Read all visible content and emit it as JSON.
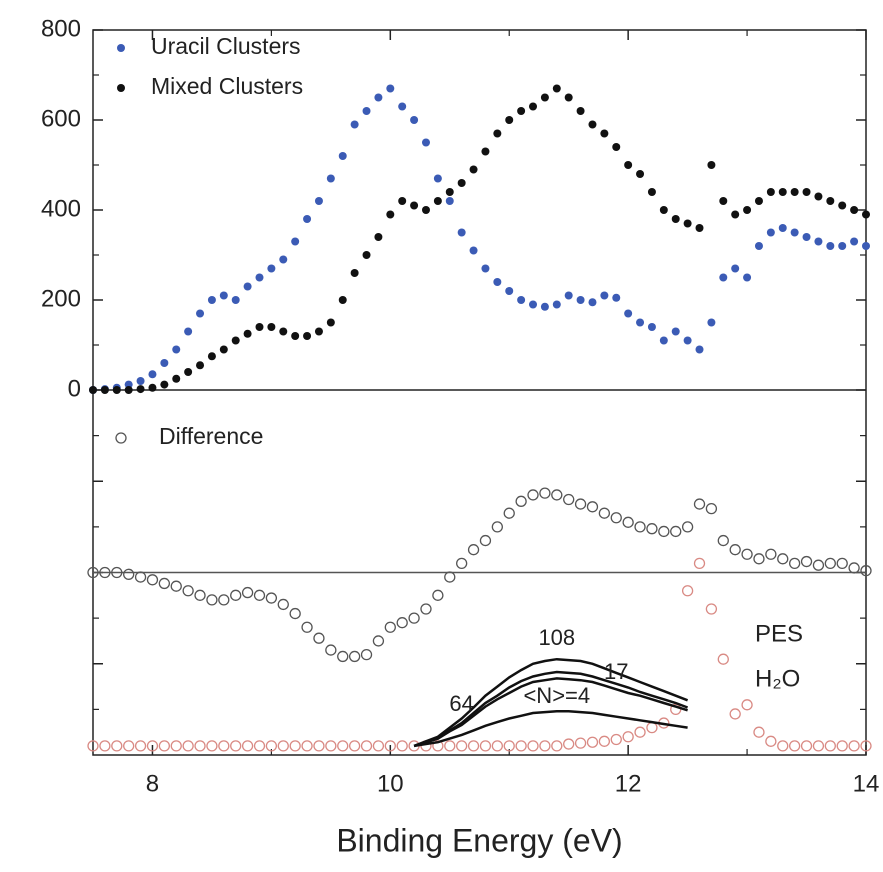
{
  "chart_data": [
    {
      "type": "scatter",
      "x": [
        7.5,
        7.6,
        7.7,
        7.8,
        7.9,
        8.0,
        8.1,
        8.2,
        8.3,
        8.4,
        8.5,
        8.6,
        8.7,
        8.8,
        8.9,
        9.0,
        9.1,
        9.2,
        9.3,
        9.4,
        9.5,
        9.6,
        9.7,
        9.8,
        9.9,
        10.0,
        10.1,
        10.2,
        10.3,
        10.4,
        10.5,
        10.6,
        10.7,
        10.8,
        10.9,
        11.0,
        11.1,
        11.2,
        11.3,
        11.4,
        11.5,
        11.6,
        11.7,
        11.8,
        11.9,
        12.0,
        12.1,
        12.2,
        12.3,
        12.4,
        12.5,
        12.6,
        12.7,
        12.8,
        12.9,
        13.0,
        13.1,
        13.2,
        13.3,
        13.4,
        13.5,
        13.6,
        13.7,
        13.8,
        13.9,
        14.0
      ],
      "xlim": [
        7.5,
        14
      ],
      "xticks": [
        8,
        10,
        12,
        14
      ],
      "ylim": [
        0,
        800
      ],
      "yticks": [
        0,
        200,
        400,
        600,
        800
      ],
      "legend": "upper left",
      "series": [
        {
          "name": "Uracil Clusters",
          "color": "#3b5bb5",
          "marker": "filled",
          "values": [
            0,
            2,
            5,
            12,
            20,
            35,
            60,
            90,
            130,
            170,
            200,
            210,
            200,
            230,
            250,
            270,
            290,
            330,
            380,
            420,
            470,
            520,
            590,
            620,
            650,
            670,
            630,
            600,
            550,
            470,
            420,
            350,
            310,
            270,
            240,
            220,
            200,
            190,
            185,
            190,
            210,
            200,
            195,
            210,
            205,
            170,
            150,
            140,
            110,
            130,
            110,
            90,
            150,
            250,
            270,
            250,
            320,
            350,
            360,
            350,
            340,
            330,
            320,
            320,
            330,
            320
          ]
        },
        {
          "name": "Mixed Clusters",
          "color": "#111111",
          "marker": "filled",
          "values": [
            0,
            0,
            0,
            0,
            2,
            5,
            12,
            25,
            40,
            55,
            75,
            90,
            110,
            125,
            140,
            140,
            130,
            120,
            120,
            130,
            150,
            200,
            260,
            300,
            340,
            390,
            420,
            410,
            400,
            420,
            440,
            460,
            490,
            530,
            570,
            600,
            620,
            630,
            650,
            670,
            650,
            620,
            590,
            570,
            540,
            500,
            480,
            440,
            400,
            380,
            370,
            360,
            500,
            420,
            390,
            400,
            420,
            440,
            440,
            440,
            440,
            430,
            420,
            410,
            400,
            390
          ]
        }
      ]
    },
    {
      "type": "scatter",
      "x": [
        7.5,
        7.6,
        7.7,
        7.8,
        7.9,
        8.0,
        8.1,
        8.2,
        8.3,
        8.4,
        8.5,
        8.6,
        8.7,
        8.8,
        8.9,
        9.0,
        9.1,
        9.2,
        9.3,
        9.4,
        9.5,
        9.6,
        9.7,
        9.8,
        9.9,
        10.0,
        10.1,
        10.2,
        10.3,
        10.4,
        10.5,
        10.6,
        10.7,
        10.8,
        10.9,
        11.0,
        11.1,
        11.2,
        11.3,
        11.4,
        11.5,
        11.6,
        11.7,
        11.8,
        11.9,
        12.0,
        12.1,
        12.2,
        12.3,
        12.4,
        12.5,
        12.6,
        12.7,
        12.8,
        12.9,
        13.0,
        13.1,
        13.2,
        13.3,
        13.4,
        13.5,
        13.6,
        13.7,
        13.8,
        13.9,
        14.0
      ],
      "xlim": [
        7.5,
        14
      ],
      "xticks": [
        8,
        10,
        12,
        14
      ],
      "xlabel": "Binding Energy (eV)",
      "ylim": [
        -2,
        2
      ],
      "yticks": [
        -1,
        0,
        1
      ],
      "legend": "upper left",
      "annotations": [
        "PES",
        "H₂O"
      ],
      "series": [
        {
          "name": "Difference",
          "color": "#555555",
          "marker": "open",
          "values": [
            0,
            0,
            0,
            -0.02,
            -0.05,
            -0.08,
            -0.12,
            -0.15,
            -0.2,
            -0.25,
            -0.3,
            -0.3,
            -0.25,
            -0.22,
            -0.25,
            -0.28,
            -0.35,
            -0.45,
            -0.6,
            -0.72,
            -0.85,
            -0.92,
            -0.92,
            -0.9,
            -0.75,
            -0.6,
            -0.55,
            -0.5,
            -0.4,
            -0.25,
            -0.05,
            0.1,
            0.25,
            0.35,
            0.5,
            0.65,
            0.78,
            0.85,
            0.87,
            0.85,
            0.8,
            0.75,
            0.72,
            0.65,
            0.6,
            0.55,
            0.5,
            0.48,
            0.45,
            0.45,
            0.5,
            0.75,
            0.7,
            0.35,
            0.25,
            0.2,
            0.15,
            0.2,
            0.15,
            0.1,
            0.12,
            0.08,
            0.1,
            0.1,
            0.05,
            0.02
          ]
        },
        {
          "color": "#d98a84",
          "marker": "open",
          "values": [
            -1.9,
            -1.9,
            -1.9,
            -1.9,
            -1.9,
            -1.9,
            -1.9,
            -1.9,
            -1.9,
            -1.9,
            -1.9,
            -1.9,
            -1.9,
            -1.9,
            -1.9,
            -1.9,
            -1.9,
            -1.9,
            -1.9,
            -1.9,
            -1.9,
            -1.9,
            -1.9,
            -1.9,
            -1.9,
            -1.9,
            -1.9,
            -1.9,
            -1.9,
            -1.9,
            -1.9,
            -1.9,
            -1.9,
            -1.9,
            -1.9,
            -1.9,
            -1.9,
            -1.9,
            -1.9,
            -1.9,
            -1.88,
            -1.87,
            -1.86,
            -1.85,
            -1.83,
            -1.8,
            -1.75,
            -1.7,
            -1.65,
            -1.5,
            -0.2,
            0.1,
            -0.4,
            -0.95,
            -1.55,
            -1.45,
            -1.75,
            -1.85,
            -1.9,
            -1.9,
            -1.9,
            -1.9,
            -1.9,
            -1.9,
            -1.9,
            -1.9
          ]
        },
        {
          "name": "108",
          "color": "#111111",
          "marker": "line",
          "values": [
            null,
            null,
            null,
            null,
            null,
            null,
            null,
            null,
            null,
            null,
            null,
            null,
            null,
            null,
            null,
            null,
            null,
            null,
            null,
            null,
            null,
            null,
            null,
            null,
            null,
            null,
            null,
            -1.9,
            -1.85,
            -1.8,
            -1.7,
            -1.6,
            -1.48,
            -1.35,
            -1.25,
            -1.15,
            -1.07,
            -1.0,
            -0.97,
            -0.95,
            -0.96,
            -0.97,
            -1.0,
            -1.05,
            -1.1,
            -1.15,
            -1.2,
            -1.25,
            -1.3,
            -1.35,
            -1.4,
            null,
            null,
            null,
            null,
            null,
            null,
            null,
            null,
            null,
            null,
            null,
            null,
            null,
            null,
            null
          ]
        },
        {
          "name": "64",
          "color": "#111111",
          "marker": "line",
          "values": [
            null,
            null,
            null,
            null,
            null,
            null,
            null,
            null,
            null,
            null,
            null,
            null,
            null,
            null,
            null,
            null,
            null,
            null,
            null,
            null,
            null,
            null,
            null,
            null,
            null,
            null,
            null,
            -1.9,
            -1.86,
            -1.82,
            -1.73,
            -1.65,
            -1.54,
            -1.43,
            -1.35,
            -1.26,
            -1.19,
            -1.14,
            -1.11,
            -1.09,
            -1.1,
            -1.11,
            -1.14,
            -1.18,
            -1.22,
            -1.26,
            -1.31,
            -1.35,
            -1.39,
            -1.43,
            -1.48,
            null,
            null,
            null,
            null,
            null,
            null,
            null,
            null,
            null,
            null,
            null,
            null,
            null,
            null,
            null
          ]
        },
        {
          "name": "17",
          "color": "#111111",
          "marker": "line",
          "values": [
            null,
            null,
            null,
            null,
            null,
            null,
            null,
            null,
            null,
            null,
            null,
            null,
            null,
            null,
            null,
            null,
            null,
            null,
            null,
            null,
            null,
            null,
            null,
            null,
            null,
            null,
            null,
            -1.9,
            -1.86,
            -1.82,
            -1.74,
            -1.67,
            -1.57,
            -1.47,
            -1.39,
            -1.32,
            -1.25,
            -1.2,
            -1.18,
            -1.16,
            -1.17,
            -1.18,
            -1.2,
            -1.24,
            -1.28,
            -1.32,
            -1.35,
            -1.39,
            -1.43,
            -1.47,
            -1.51,
            null,
            null,
            null,
            null,
            null,
            null,
            null,
            null,
            null,
            null,
            null,
            null,
            null,
            null,
            null
          ]
        },
        {
          "name": "<N>=4",
          "color": "#111111",
          "marker": "line",
          "values": [
            null,
            null,
            null,
            null,
            null,
            null,
            null,
            null,
            null,
            null,
            null,
            null,
            null,
            null,
            null,
            null,
            null,
            null,
            null,
            null,
            null,
            null,
            null,
            null,
            null,
            null,
            null,
            -1.9,
            -1.88,
            -1.86,
            -1.82,
            -1.78,
            -1.73,
            -1.68,
            -1.64,
            -1.6,
            -1.57,
            -1.54,
            -1.53,
            -1.52,
            -1.52,
            -1.53,
            -1.54,
            -1.56,
            -1.58,
            -1.6,
            -1.62,
            -1.64,
            -1.66,
            -1.68,
            -1.7,
            null,
            null,
            null,
            null,
            null,
            null,
            null,
            null,
            null,
            null,
            null,
            null,
            null,
            null,
            null
          ]
        }
      ]
    }
  ]
}
